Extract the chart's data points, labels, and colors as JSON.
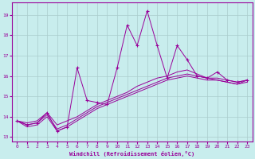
{
  "xlabel": "Windchill (Refroidissement éolien,°C)",
  "bg_color": "#c8eded",
  "grid_color": "#aacccc",
  "line_color": "#990099",
  "xlim": [
    -0.5,
    23.5
  ],
  "ylim": [
    12.8,
    19.6
  ],
  "yticks": [
    13,
    14,
    15,
    16,
    17,
    18,
    19
  ],
  "xticks": [
    0,
    1,
    2,
    3,
    4,
    5,
    6,
    7,
    8,
    9,
    10,
    11,
    12,
    13,
    14,
    15,
    16,
    17,
    18,
    19,
    20,
    21,
    22,
    23
  ],
  "series": [
    [
      13.8,
      13.6,
      13.7,
      14.2,
      13.3,
      13.5,
      16.4,
      14.8,
      14.7,
      14.6,
      16.4,
      18.5,
      17.5,
      19.2,
      17.5,
      15.9,
      17.5,
      16.8,
      16.0,
      15.9,
      16.2,
      15.8,
      15.7,
      15.8
    ],
    [
      13.8,
      13.7,
      13.8,
      14.2,
      13.6,
      13.8,
      14.0,
      14.3,
      14.6,
      14.8,
      15.0,
      15.2,
      15.5,
      15.7,
      15.9,
      16.0,
      16.2,
      16.3,
      16.1,
      15.9,
      15.9,
      15.8,
      15.7,
      15.8
    ],
    [
      13.8,
      13.6,
      13.7,
      14.1,
      13.4,
      13.6,
      13.9,
      14.2,
      14.5,
      14.7,
      14.9,
      15.1,
      15.3,
      15.5,
      15.7,
      15.9,
      16.0,
      16.1,
      16.0,
      15.9,
      15.8,
      15.7,
      15.6,
      15.8
    ],
    [
      13.8,
      13.5,
      13.6,
      14.0,
      13.3,
      13.5,
      13.8,
      14.1,
      14.4,
      14.6,
      14.8,
      15.0,
      15.2,
      15.4,
      15.6,
      15.8,
      15.9,
      16.0,
      15.9,
      15.8,
      15.8,
      15.7,
      15.6,
      15.7
    ]
  ]
}
